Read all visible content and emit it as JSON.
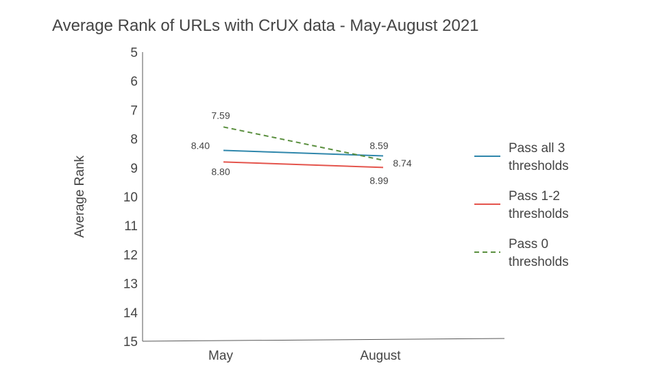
{
  "chart_data": {
    "type": "line",
    "title": "Average Rank of URLs with CrUX data - May-August 2021",
    "xlabel": "",
    "ylabel": "Average Rank",
    "categories": [
      "May",
      "August"
    ],
    "ylim": [
      5,
      15
    ],
    "y_inverted": true,
    "y_ticks": [
      "5",
      "6",
      "7",
      "8",
      "9",
      "10",
      "11",
      "12",
      "13",
      "14",
      "15"
    ],
    "grid": false,
    "legend_position": "right",
    "series": [
      {
        "name": "Pass all 3 thresholds",
        "name_lines": [
          "Pass all 3",
          "thresholds"
        ],
        "values": [
          8.4,
          8.59
        ],
        "labels": [
          "8.40",
          "8.59"
        ],
        "color": "#2e86ab",
        "dashed": false
      },
      {
        "name": "Pass 1-2 thresholds",
        "name_lines": [
          "Pass 1-2",
          "thresholds"
        ],
        "values": [
          8.8,
          8.99
        ],
        "labels": [
          "8.80",
          "8.99"
        ],
        "color": "#e4534b",
        "dashed": false
      },
      {
        "name": "Pass 0 thresholds",
        "name_lines": [
          "Pass 0",
          "thresholds"
        ],
        "values": [
          7.59,
          8.74
        ],
        "labels": [
          "7.59",
          "8.74"
        ],
        "color": "#5a8f3e",
        "dashed": true
      }
    ]
  }
}
